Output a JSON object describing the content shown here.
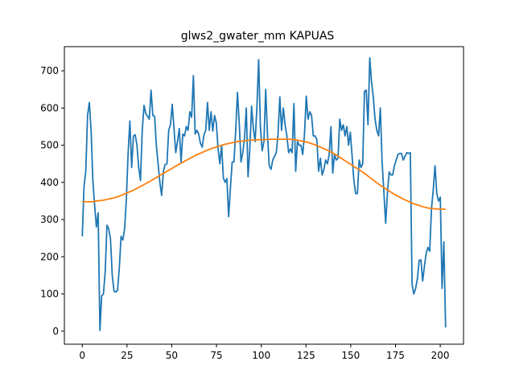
{
  "chart_data": {
    "type": "line",
    "title": "glws2_gwater_mm KAPUAS",
    "xlabel": "",
    "ylabel": "",
    "xlim": [
      -10,
      213
    ],
    "ylim": [
      -35,
      765
    ],
    "xticks": [
      0,
      25,
      50,
      75,
      100,
      125,
      150,
      175,
      200
    ],
    "yticks": [
      0,
      100,
      200,
      300,
      400,
      500,
      600,
      700
    ],
    "grid": false,
    "legend": "none",
    "series": [
      {
        "color": "#1f77b4",
        "values": [
          255,
          390,
          430,
          580,
          615,
          540,
          405,
          340,
          280,
          318,
          2,
          95,
          100,
          160,
          285,
          275,
          248,
          150,
          108,
          105,
          110,
          170,
          255,
          245,
          275,
          355,
          480,
          565,
          440,
          525,
          528,
          500,
          440,
          405,
          540,
          607,
          585,
          578,
          570,
          648,
          580,
          578,
          500,
          450,
          400,
          365,
          430,
          448,
          450,
          540,
          555,
          610,
          545,
          480,
          510,
          545,
          455,
          530,
          525,
          550,
          540,
          590,
          575,
          687,
          530,
          540,
          530,
          505,
          495,
          528,
          540,
          615,
          540,
          590,
          538,
          580,
          560,
          490,
          450,
          500,
          412,
          400,
          410,
          308,
          385,
          455,
          455,
          540,
          642,
          560,
          455,
          480,
          520,
          600,
          415,
          490,
          605,
          545,
          510,
          600,
          730,
          550,
          485,
          510,
          650,
          530,
          445,
          435,
          460,
          470,
          480,
          530,
          630,
          540,
          600,
          555,
          525,
          480,
          490,
          480,
          612,
          430,
          510,
          500,
          500,
          475,
          530,
          632,
          570,
          590,
          580,
          525,
          525,
          515,
          430,
          465,
          420,
          435,
          460,
          450,
          475,
          550,
          425,
          475,
          460,
          465,
          570,
          540,
          555,
          525,
          550,
          500,
          535,
          470,
          405,
          370,
          370,
          460,
          440,
          450,
          645,
          648,
          555,
          735,
          670,
          630,
          570,
          540,
          525,
          600,
          455,
          375,
          290,
          370,
          428,
          420,
          420,
          445,
          460,
          475,
          478,
          478,
          460,
          470,
          480,
          478,
          480,
          125,
          100,
          115,
          140,
          190,
          192,
          135,
          175,
          210,
          225,
          215,
          330,
          380,
          445,
          370,
          350,
          360,
          115,
          240,
          10
        ]
      },
      {
        "color": "#ff7f0e",
        "values": [
          348,
          348,
          348,
          348,
          350,
          351,
          352,
          354,
          356,
          358,
          361,
          364,
          368,
          372,
          376,
          380,
          385,
          390,
          395,
          400,
          405,
          411,
          416,
          422,
          427,
          433,
          438,
          444,
          449,
          454,
          459,
          464,
          469,
          474,
          478,
          482,
          486,
          490,
          493,
          496,
          499,
          502,
          504,
          506,
          508,
          510,
          511,
          512,
          513,
          514,
          514,
          515,
          515,
          515,
          516,
          516,
          516,
          516,
          516,
          516,
          516,
          515,
          514,
          512,
          510,
          508,
          505,
          502,
          498,
          494,
          490,
          486,
          481,
          476,
          470,
          464,
          458,
          452,
          446,
          440,
          434,
          428,
          421,
          414,
          407,
          400,
          393,
          387,
          381,
          375,
          369,
          364,
          359,
          354,
          350,
          346,
          342,
          339,
          336,
          333,
          331,
          330,
          329,
          328,
          328,
          328
        ]
      }
    ]
  }
}
